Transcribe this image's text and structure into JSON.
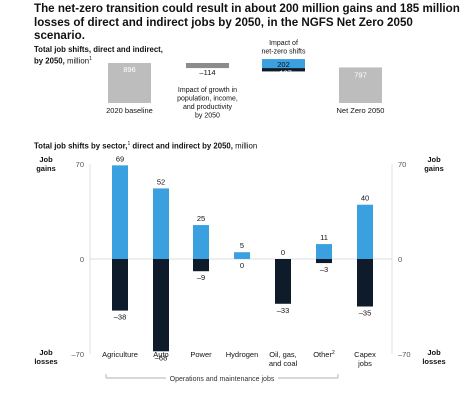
{
  "headline": "The net-zero transition could result in about 200 million gains and 185 million losses of direct and indirect jobs by 2050, in the NGFS Net Zero 2050 scenario.",
  "waterfall": {
    "title_bold": "Total job shifts, direct and indirect,",
    "title_bold_2": "by 2050,",
    "title_unit": "million",
    "footnote_mark": "1",
    "annotation_netzero_1": "Impact of",
    "annotation_netzero_2": "net-zero shifts",
    "annotation_growth_1": "Impact of growth in",
    "annotation_growth_2": "population, income,",
    "annotation_growth_3": "and productivity",
    "annotation_growth_4": "by 2050",
    "colors": {
      "baseline": "#bdbdbd",
      "growth": "#8c8c8c",
      "gains": "#3aa0e0",
      "losses": "#0d1b2a"
    }
  },
  "sector": {
    "title_bold": "Total job shifts by sector,",
    "title_bold_2": "direct and indirect by 2050,",
    "title_unit": "million",
    "footnote_mark": "1",
    "gains_label_1": "Job",
    "gains_label_2": "gains",
    "losses_label_1": "Job",
    "losses_label_2": "losses",
    "group_label": "Operations and maintenance jobs",
    "colors": {
      "gains": "#3aa0e0",
      "losses": "#0d1b2a"
    }
  },
  "chart_data": [
    {
      "type": "bar",
      "subtype": "waterfall",
      "categories": [
        "2020 baseline",
        "Impact of growth",
        "Impact of net-zero shifts (gains)",
        "Impact of net-zero shifts (losses)",
        "Net Zero 2050"
      ],
      "x_labels": [
        "2020 baseline",
        "Net Zero 2050"
      ],
      "values": [
        896,
        -114,
        202,
        -187,
        797
      ],
      "value_labels": [
        "896",
        "–114",
        "202",
        "–187",
        "797"
      ]
    },
    {
      "type": "bar",
      "categories": [
        "Agriculture",
        "Auto",
        "Power",
        "Hydrogen",
        "Oil, gas, and coal",
        "Other",
        "Capex jobs"
      ],
      "category_lines": [
        [
          "Agriculture"
        ],
        [
          "Auto"
        ],
        [
          "Power"
        ],
        [
          "Hydrogen"
        ],
        [
          "Oil, gas,",
          "and coal"
        ],
        [
          "Other"
        ],
        [
          "Capex",
          "jobs"
        ]
      ],
      "category_footnotes": [
        "",
        "",
        "",
        "",
        "",
        "2",
        ""
      ],
      "series": [
        {
          "values": [
            69,
            52,
            25,
            5,
            0,
            11,
            40
          ],
          "labels": [
            "69",
            "52",
            "25",
            "5",
            "0",
            "11",
            "40"
          ]
        },
        {
          "values": [
            -38,
            -68,
            -9,
            0,
            -33,
            -3,
            -35
          ],
          "labels": [
            "–38",
            "–68",
            "–9",
            "0",
            "–33",
            "–3",
            "–35"
          ]
        }
      ],
      "yticks": [
        70,
        0,
        -70
      ],
      "ytick_labels": [
        "70",
        "0",
        "–70"
      ],
      "ylim": [
        -70,
        70
      ],
      "grid": false
    }
  ]
}
